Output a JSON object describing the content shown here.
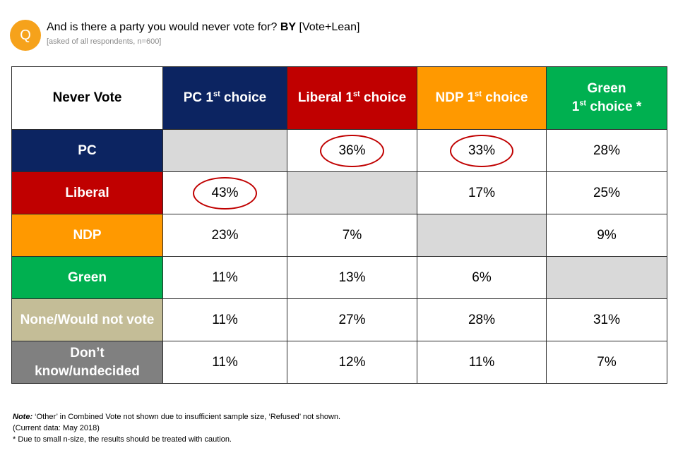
{
  "header": {
    "badge": "Q",
    "question_text": "And is there a party you would never vote for?",
    "question_bold": "BY",
    "question_suffix": "[Vote+Lean]",
    "subtitle": "[asked of all respondents, n=600]"
  },
  "colors": {
    "pc": "#0c2461",
    "liberal": "#c00000",
    "ndp": "#ff9900",
    "green": "#00b050",
    "none": "#c4bd97",
    "dont_know": "#808080",
    "grey_cell": "#d9d9d9",
    "circle": "#c00000",
    "badge": "#f6a21b"
  },
  "chart_data": {
    "type": "table",
    "corner_label": "Never Vote",
    "columns": [
      {
        "label": "PC 1",
        "sup": "st",
        "suffix": " choice"
      },
      {
        "label": "Liberal 1",
        "sup": "st",
        "suffix": " choice"
      },
      {
        "label": "NDP 1",
        "sup": "st",
        "suffix": " choice"
      },
      {
        "label_line1": "Green",
        "label": "1",
        "sup": "st",
        "suffix": " choice *"
      }
    ],
    "rows": [
      {
        "label": "PC",
        "values": [
          "",
          "36%",
          "33%",
          "28%"
        ],
        "na": [
          true,
          false,
          false,
          false
        ],
        "circled": [
          false,
          true,
          true,
          false
        ]
      },
      {
        "label": "Liberal",
        "values": [
          "43%",
          "",
          "17%",
          "25%"
        ],
        "na": [
          false,
          true,
          false,
          false
        ],
        "circled": [
          true,
          false,
          false,
          false
        ]
      },
      {
        "label": "NDP",
        "values": [
          "23%",
          "7%",
          "",
          "9%"
        ],
        "na": [
          false,
          false,
          true,
          false
        ],
        "circled": [
          false,
          false,
          false,
          false
        ]
      },
      {
        "label": "Green",
        "values": [
          "11%",
          "13%",
          "6%",
          ""
        ],
        "na": [
          false,
          false,
          false,
          true
        ],
        "circled": [
          false,
          false,
          false,
          false
        ]
      },
      {
        "label": "None/Would not vote",
        "values": [
          "11%",
          "27%",
          "28%",
          "31%"
        ],
        "na": [
          false,
          false,
          false,
          false
        ],
        "circled": [
          false,
          false,
          false,
          false
        ]
      },
      {
        "label_line1": "Don’t",
        "label": "know/undecided",
        "values": [
          "11%",
          "12%",
          "11%",
          "7%"
        ],
        "na": [
          false,
          false,
          false,
          false
        ],
        "circled": [
          false,
          false,
          false,
          false
        ]
      }
    ]
  },
  "footnotes": {
    "note_label": "Note:",
    "note_text": " ‘Other’ in Combined Vote not shown due to insufficient sample size, ‘Refused’ not shown.",
    "current_data": " (Current data: May 2018)",
    "caution": " * Due to small n-size, the results should be treated with caution."
  }
}
